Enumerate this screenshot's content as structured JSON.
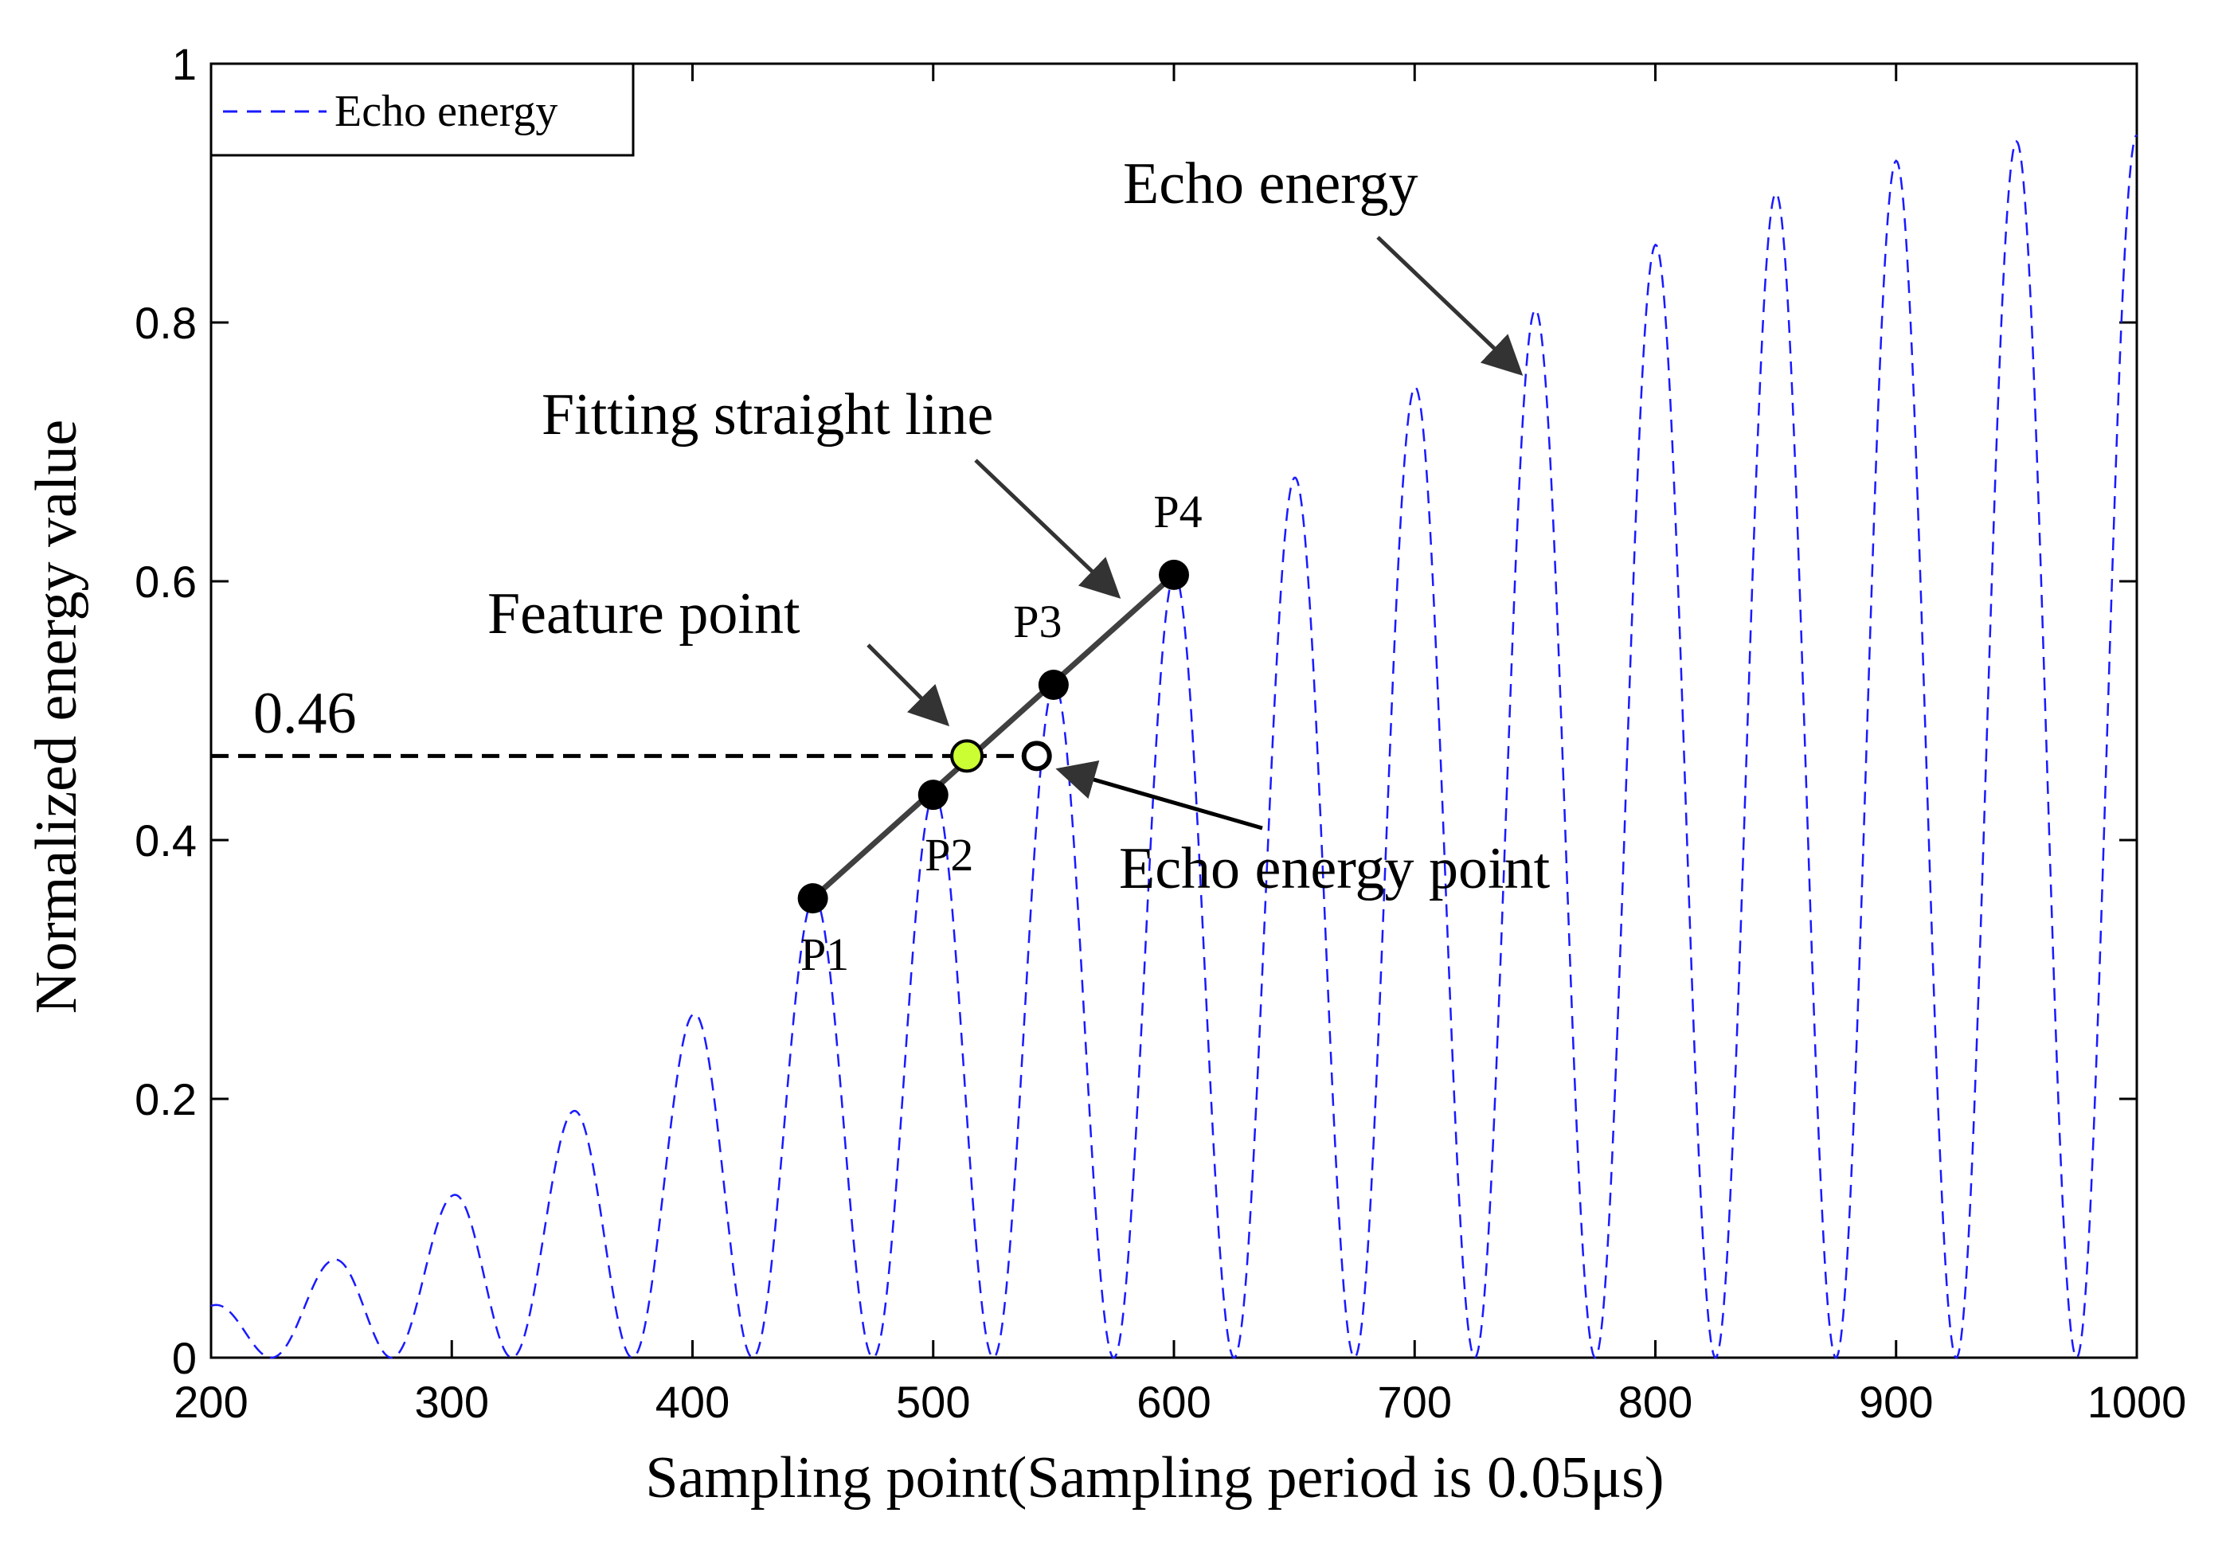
{
  "chart_data": {
    "type": "line",
    "xlabel": "Sampling point(Sampling period is 0.05μs)",
    "ylabel": "Normalized energy value",
    "xlim": [
      200,
      1000
    ],
    "ylim": [
      0,
      1
    ],
    "xticks": [
      200,
      300,
      400,
      500,
      600,
      700,
      800,
      900,
      1000
    ],
    "yticks": [
      0,
      0.2,
      0.4,
      0.6,
      0.8,
      1
    ],
    "ytick_labels": [
      "0",
      "0.2",
      "0.4",
      "0.6",
      "0.8",
      "1"
    ],
    "legend": {
      "position": "top-left",
      "entries": [
        "Echo energy"
      ]
    },
    "series": [
      {
        "name": "Echo energy",
        "style": "dashed",
        "color": "#1a1aff",
        "period": 50,
        "envelope": [
          [
            200,
            0.04
          ],
          [
            250,
            0.075
          ],
          [
            300,
            0.125
          ],
          [
            350,
            0.19
          ],
          [
            400,
            0.265
          ],
          [
            450,
            0.355
          ],
          [
            500,
            0.435
          ],
          [
            550,
            0.52
          ],
          [
            600,
            0.605
          ],
          [
            650,
            0.68
          ],
          [
            700,
            0.75
          ],
          [
            750,
            0.81
          ],
          [
            800,
            0.86
          ],
          [
            850,
            0.9
          ],
          [
            900,
            0.925
          ],
          [
            950,
            0.94
          ],
          [
            1000,
            0.945
          ]
        ]
      }
    ],
    "fit_points": [
      {
        "label": "P1",
        "x": 450,
        "y": 0.355
      },
      {
        "label": "P2",
        "x": 500,
        "y": 0.435
      },
      {
        "label": "P3",
        "x": 550,
        "y": 0.52
      },
      {
        "label": "P4",
        "x": 600,
        "y": 0.605
      }
    ],
    "feature_point": {
      "x": 514,
      "y": 0.465
    },
    "echo_energy_point": {
      "x": 543,
      "y": 0.465
    },
    "threshold": {
      "value": 0.465,
      "label": "0.46"
    },
    "annotations": {
      "echo_energy": "Echo energy",
      "fitting_line": "Fitting straight line",
      "feature_point": "Feature point",
      "echo_energy_point": "Echo energy point"
    },
    "colors": {
      "fit_line": "#404040",
      "feature_point": "#ccff33",
      "point": "#000000"
    }
  }
}
